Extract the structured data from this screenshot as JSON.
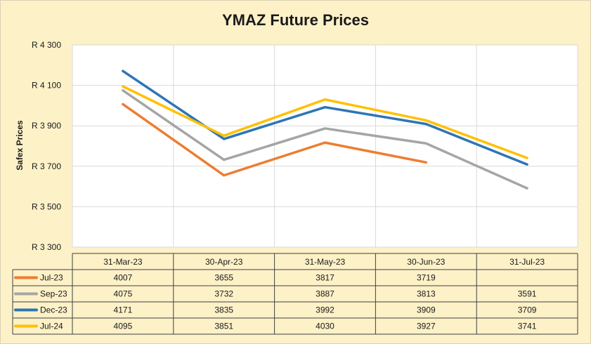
{
  "chart_data": {
    "type": "line",
    "title": "YMAZ Future Prices",
    "ylabel": "Safex Prices",
    "xlabel": "",
    "ylim": [
      3300,
      4300
    ],
    "yticks": [
      3300,
      3500,
      3700,
      3900,
      4100,
      4300
    ],
    "ytick_labels": [
      "R 3 300",
      "R 3 500",
      "R 3 700",
      "R 3 900",
      "R 4 100",
      "R 4 300"
    ],
    "categories": [
      "31-Mar-23",
      "30-Apr-23",
      "31-May-23",
      "30-Jun-23",
      "31-Jul-23"
    ],
    "grid": true,
    "legend": "data-table",
    "series": [
      {
        "name": "Jul-23",
        "color": "#ed7d31",
        "values": [
          4007,
          3655,
          3817,
          3719,
          null
        ]
      },
      {
        "name": "Sep-23",
        "color": "#a5a5a5",
        "values": [
          4075,
          3732,
          3887,
          3813,
          3591
        ]
      },
      {
        "name": "Dec-23",
        "color": "#2e75b6",
        "values": [
          4171,
          3835,
          3992,
          3909,
          3709
        ]
      },
      {
        "name": "Jul-24",
        "color": "#ffc000",
        "values": [
          4095,
          3851,
          4030,
          3927,
          3741
        ]
      }
    ]
  }
}
